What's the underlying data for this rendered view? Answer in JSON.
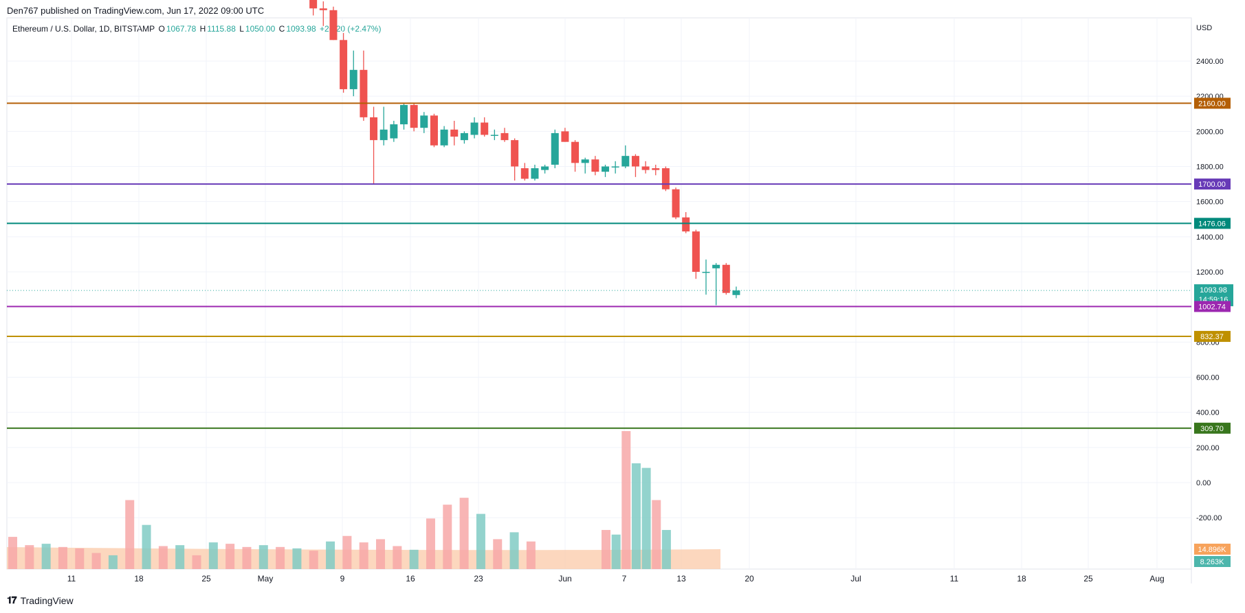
{
  "header": {
    "publisher_line": "Den767 published on TradingView.com, Jun 17, 2022 09:00 UTC"
  },
  "legend": {
    "symbol": "Ethereum / U.S. Dollar, 1D, BITSTAMP",
    "open_label": "O",
    "open": "1067.78",
    "high_label": "H",
    "high": "1115.88",
    "low_label": "L",
    "low": "1050.00",
    "close_label": "C",
    "close": "1093.98",
    "change": "+26.20 (+2.47%)"
  },
  "footer": {
    "brand": "TradingView"
  },
  "colors": {
    "up": "#26a69a",
    "down": "#ef5350",
    "grid": "#f0f3fa",
    "volume_up": "#80cbc4",
    "volume_down": "#f7a8a8"
  },
  "chart_data": {
    "type": "candlestick",
    "currency_label": "USD",
    "y_ticks": [
      "2400.00",
      "2200.00",
      "2000.00",
      "1800.00",
      "1600.00",
      "1400.00",
      "1200.00",
      "800.00",
      "600.00",
      "400.00",
      "200.00",
      "0.00",
      "-200.00"
    ],
    "x_ticks": [
      "11",
      "18",
      "25",
      "May",
      "9",
      "16",
      "23",
      "Jun",
      "7",
      "13",
      "20",
      "Jul",
      "11",
      "18",
      "25",
      "Aug"
    ],
    "last_price": {
      "value": "1093.98",
      "countdown": "14:59:16",
      "color": "#26a69a"
    },
    "horizontal_levels": [
      {
        "value": 2160.0,
        "label": "2160.00",
        "color": "#b45f06"
      },
      {
        "value": 1700.0,
        "label": "1700.00",
        "color": "#673ab7"
      },
      {
        "value": 1476.06,
        "label": "1476.06",
        "color": "#00897b"
      },
      {
        "value": 1002.74,
        "label": "1002.74",
        "color": "#9c27b0"
      },
      {
        "value": 832.37,
        "label": "832.37",
        "color": "#bf9000"
      },
      {
        "value": 309.7,
        "label": "309.70",
        "color": "#38761d"
      }
    ],
    "volume_labels": [
      {
        "value": "14.896K",
        "color": "#f7a35c"
      },
      {
        "value": "8.263K",
        "color": "#4db6ac"
      }
    ],
    "candles": [
      {
        "o": 2800,
        "h": 2850,
        "l": 2760,
        "c": 2790
      },
      {
        "o": 2790,
        "h": 2810,
        "l": 2660,
        "c": 2700
      },
      {
        "o": 2700,
        "h": 2740,
        "l": 2600,
        "c": 2690
      },
      {
        "o": 2690,
        "h": 2710,
        "l": 2520,
        "c": 2520
      },
      {
        "o": 2520,
        "h": 2560,
        "l": 2220,
        "c": 2240
      },
      {
        "o": 2240,
        "h": 2460,
        "l": 2200,
        "c": 2350
      },
      {
        "o": 2350,
        "h": 2460,
        "l": 2060,
        "c": 2080
      },
      {
        "o": 2080,
        "h": 2140,
        "l": 1700,
        "c": 1950
      },
      {
        "o": 1950,
        "h": 2140,
        "l": 1920,
        "c": 2010
      },
      {
        "o": 1960,
        "h": 2060,
        "l": 1940,
        "c": 2040
      },
      {
        "o": 2040,
        "h": 2160,
        "l": 2010,
        "c": 2150
      },
      {
        "o": 2150,
        "h": 2160,
        "l": 2000,
        "c": 2020
      },
      {
        "o": 2020,
        "h": 2110,
        "l": 1990,
        "c": 2090
      },
      {
        "o": 2090,
        "h": 2100,
        "l": 1910,
        "c": 1920
      },
      {
        "o": 1920,
        "h": 2030,
        "l": 1910,
        "c": 2010
      },
      {
        "o": 2010,
        "h": 2060,
        "l": 1920,
        "c": 1970
      },
      {
        "o": 1950,
        "h": 2000,
        "l": 1930,
        "c": 1990
      },
      {
        "o": 1980,
        "h": 2080,
        "l": 1960,
        "c": 2050
      },
      {
        "o": 2050,
        "h": 2080,
        "l": 1970,
        "c": 1980
      },
      {
        "o": 1980,
        "h": 2010,
        "l": 1950,
        "c": 1980
      },
      {
        "o": 1990,
        "h": 2020,
        "l": 1940,
        "c": 1950
      },
      {
        "o": 1950,
        "h": 1960,
        "l": 1720,
        "c": 1800
      },
      {
        "o": 1790,
        "h": 1820,
        "l": 1720,
        "c": 1730
      },
      {
        "o": 1730,
        "h": 1810,
        "l": 1720,
        "c": 1790
      },
      {
        "o": 1780,
        "h": 1810,
        "l": 1760,
        "c": 1800
      },
      {
        "o": 1810,
        "h": 2010,
        "l": 1790,
        "c": 1990
      },
      {
        "o": 2000,
        "h": 2020,
        "l": 1940,
        "c": 1940
      },
      {
        "o": 1940,
        "h": 1950,
        "l": 1770,
        "c": 1820
      },
      {
        "o": 1820,
        "h": 1850,
        "l": 1760,
        "c": 1840
      },
      {
        "o": 1840,
        "h": 1860,
        "l": 1750,
        "c": 1770
      },
      {
        "o": 1770,
        "h": 1810,
        "l": 1740,
        "c": 1800
      },
      {
        "o": 1800,
        "h": 1830,
        "l": 1760,
        "c": 1800
      },
      {
        "o": 1800,
        "h": 1920,
        "l": 1790,
        "c": 1860
      },
      {
        "o": 1860,
        "h": 1870,
        "l": 1740,
        "c": 1800
      },
      {
        "o": 1800,
        "h": 1830,
        "l": 1760,
        "c": 1780
      },
      {
        "o": 1790,
        "h": 1810,
        "l": 1750,
        "c": 1780
      },
      {
        "o": 1790,
        "h": 1800,
        "l": 1660,
        "c": 1670
      },
      {
        "o": 1670,
        "h": 1680,
        "l": 1500,
        "c": 1510
      },
      {
        "o": 1510,
        "h": 1540,
        "l": 1420,
        "c": 1430
      },
      {
        "o": 1430,
        "h": 1440,
        "l": 1160,
        "c": 1200
      },
      {
        "o": 1200,
        "h": 1270,
        "l": 1070,
        "c": 1200
      },
      {
        "o": 1220,
        "h": 1250,
        "l": 1010,
        "c": 1240
      },
      {
        "o": 1240,
        "h": 1250,
        "l": 1070,
        "c": 1080
      },
      {
        "o": 1068,
        "h": 1116,
        "l": 1050,
        "c": 1094
      }
    ],
    "volumes": [
      {
        "v": 70,
        "up": false
      },
      {
        "v": 52,
        "up": false
      },
      {
        "v": 55,
        "up": true
      },
      {
        "v": 48,
        "up": false
      },
      {
        "v": 45,
        "up": false
      },
      {
        "v": 35,
        "up": false
      },
      {
        "v": 30,
        "up": true
      },
      {
        "v": 150,
        "up": false
      },
      {
        "v": 96,
        "up": true
      },
      {
        "v": 50,
        "up": false
      },
      {
        "v": 52,
        "up": true
      },
      {
        "v": 30,
        "up": false
      },
      {
        "v": 58,
        "up": true
      },
      {
        "v": 55,
        "up": false
      },
      {
        "v": 48,
        "up": false
      },
      {
        "v": 52,
        "up": true
      },
      {
        "v": 48,
        "up": false
      },
      {
        "v": 45,
        "up": true
      },
      {
        "v": 40,
        "up": false
      },
      {
        "v": 60,
        "up": true
      },
      {
        "v": 72,
        "up": false
      },
      {
        "v": 58,
        "up": false
      },
      {
        "v": 65,
        "up": false
      },
      {
        "v": 50,
        "up": false
      },
      {
        "v": 42,
        "up": true
      },
      {
        "v": 110,
        "up": false
      },
      {
        "v": 140,
        "up": false
      },
      {
        "v": 155,
        "up": false
      },
      {
        "v": 120,
        "up": true
      },
      {
        "v": 65,
        "up": false
      },
      {
        "v": 80,
        "up": true
      },
      {
        "v": 60,
        "up": false
      }
    ],
    "volumes_tail": [
      {
        "v": 85,
        "up": false
      },
      {
        "v": 75,
        "up": true
      },
      {
        "v": 300,
        "up": false
      },
      {
        "v": 230,
        "up": true
      },
      {
        "v": 220,
        "up": true
      },
      {
        "v": 150,
        "up": false
      },
      {
        "v": 85,
        "up": true
      }
    ]
  }
}
